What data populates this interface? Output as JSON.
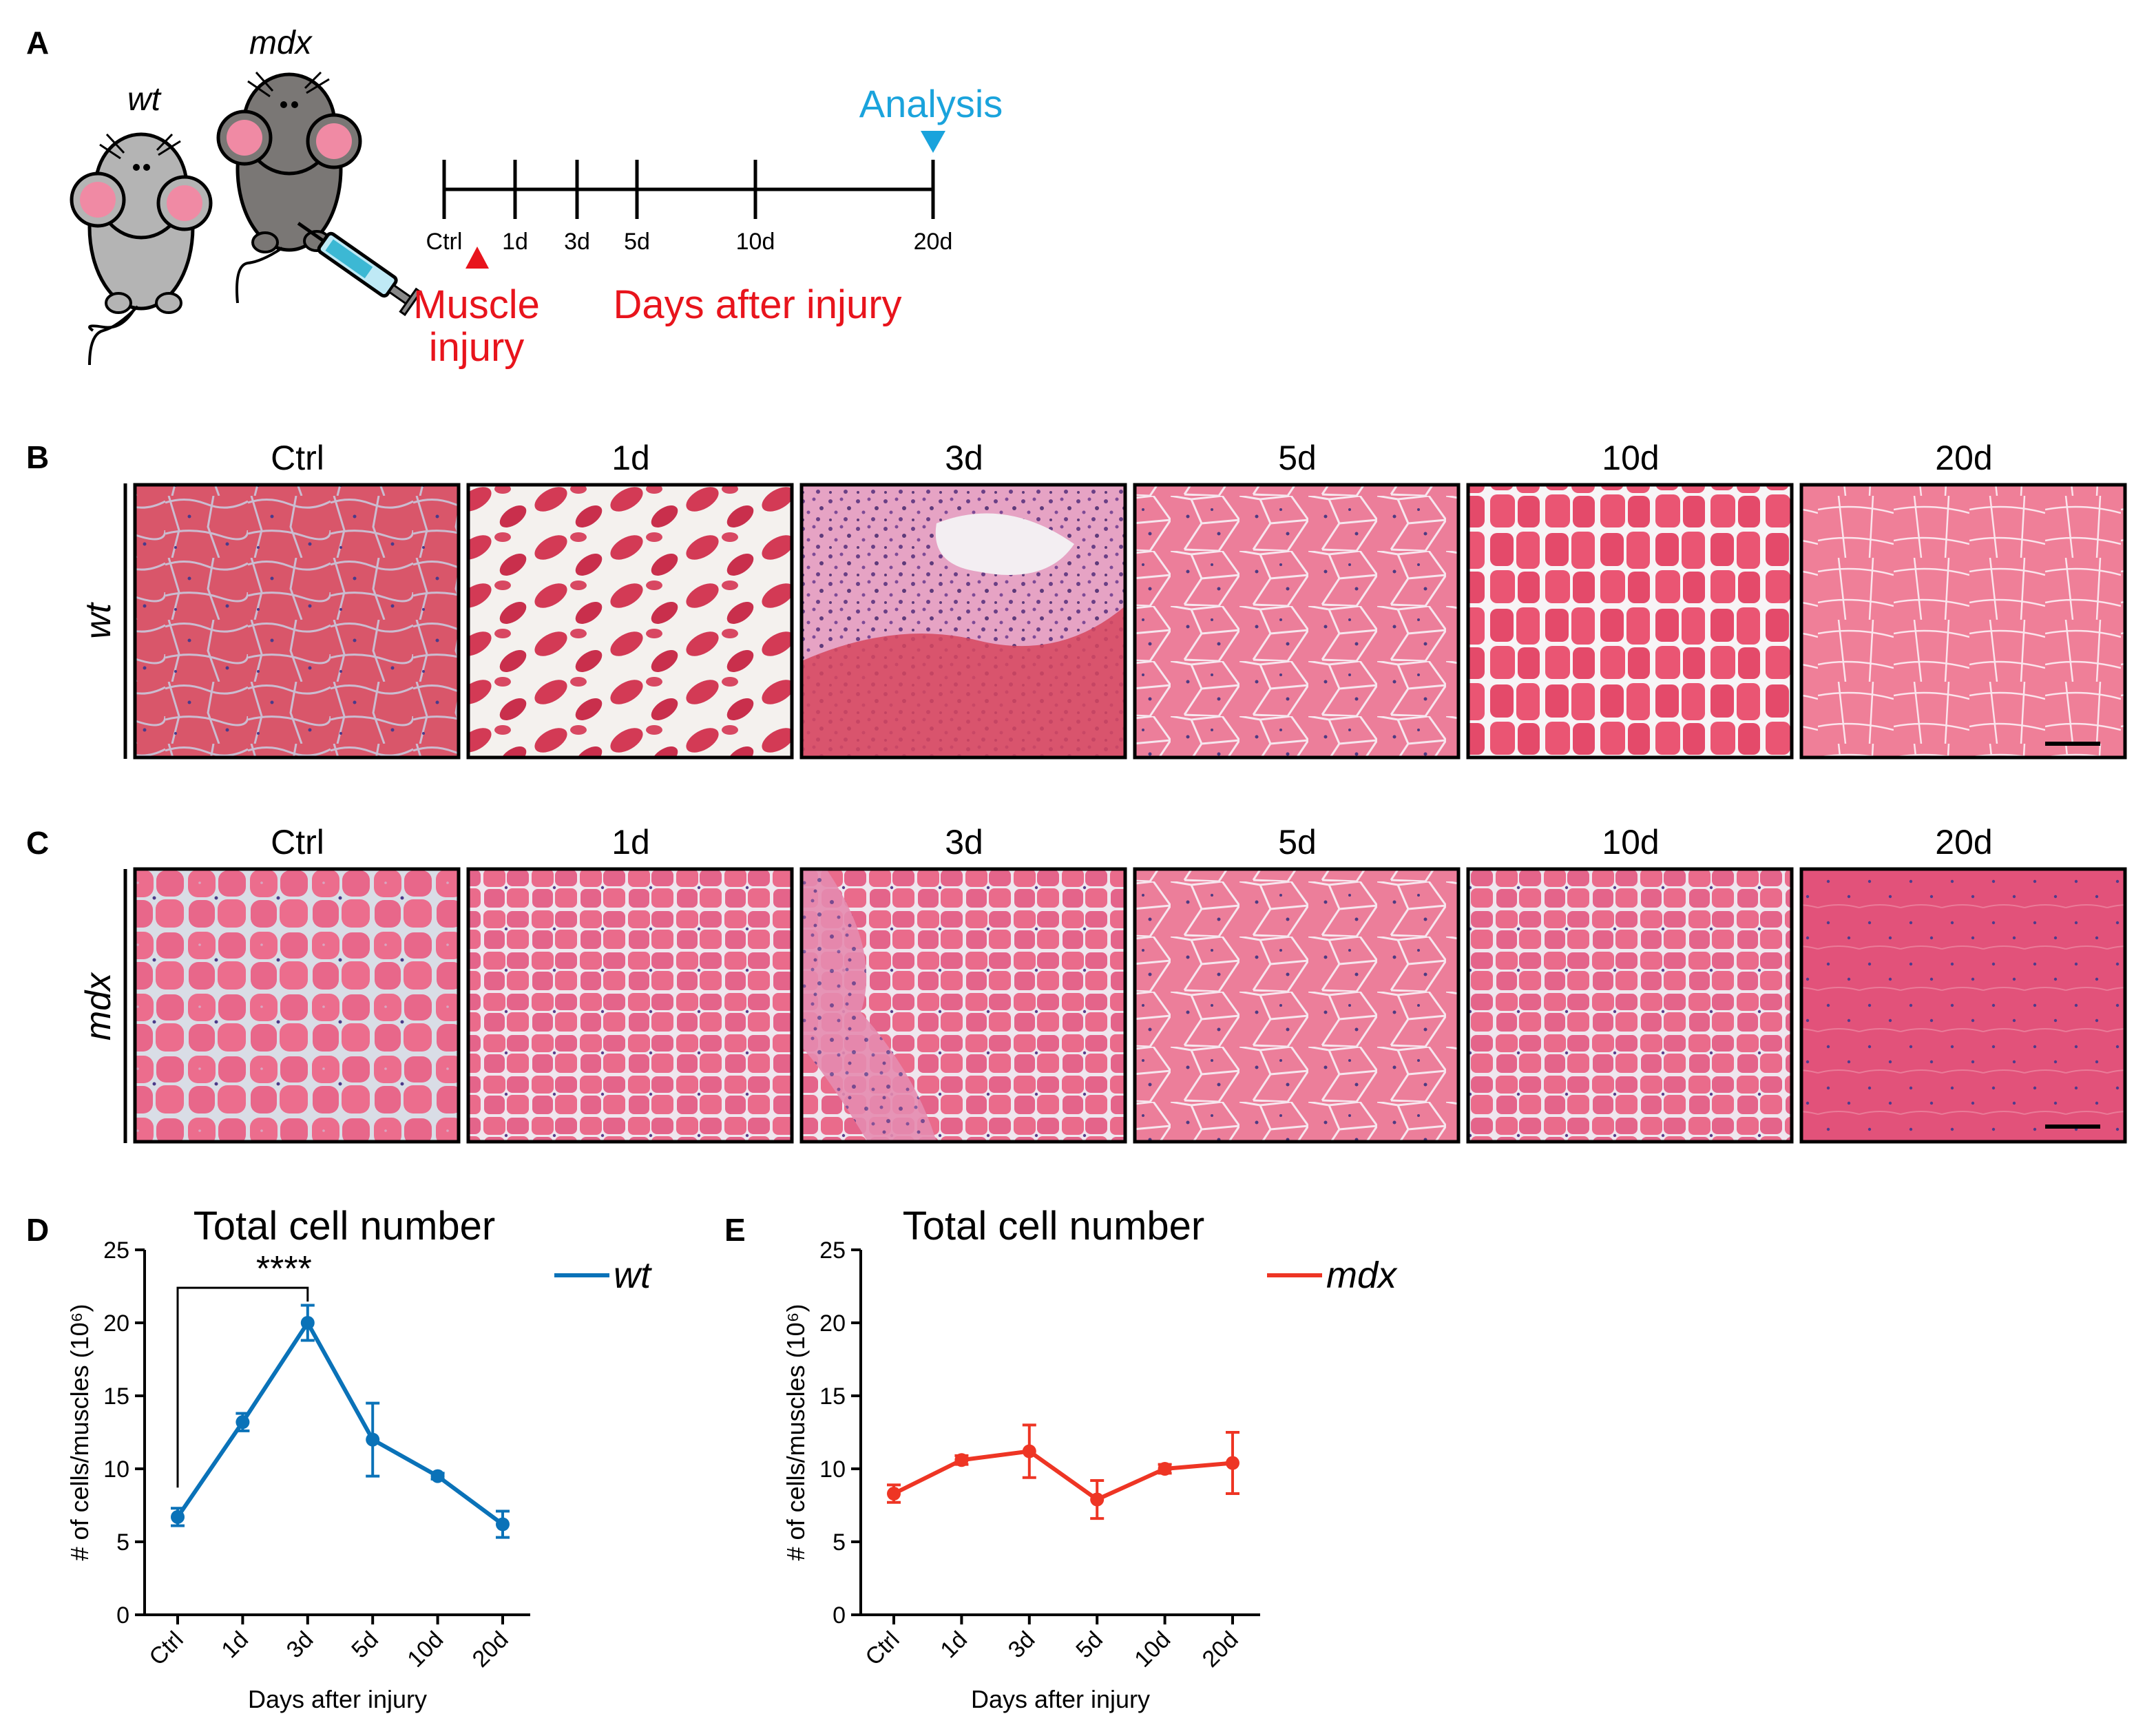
{
  "panel_labels": {
    "a": "A",
    "b": "B",
    "c": "C",
    "d": "D",
    "e": "E"
  },
  "panel_a": {
    "mouse_wt_label": "wt",
    "mouse_mdx_label": "mdx",
    "timeline_ticks": [
      "Ctrl",
      "1d",
      "3d",
      "5d",
      "10d",
      "20d"
    ],
    "analysis_label": "Analysis",
    "injury_label_line1": "Muscle",
    "injury_label_line2": "injury",
    "days_label": "Days after injury",
    "colors": {
      "analysis": "#1aa3dc",
      "injury": "#e8141c",
      "wt_mouse": "#b4b4b4",
      "mdx_mouse": "#7a7775",
      "ear": "#f08aa4"
    }
  },
  "panel_b": {
    "row_label": "wt",
    "column_labels": [
      "Ctrl",
      "1d",
      "3d",
      "5d",
      "10d",
      "20d"
    ]
  },
  "panel_c": {
    "row_label": "mdx",
    "column_labels": [
      "Ctrl",
      "1d",
      "3d",
      "5d",
      "10d",
      "20d"
    ]
  },
  "chart_data": [
    {
      "type": "line",
      "panel": "D",
      "title": "Total cell number",
      "xlabel": "Days after injury",
      "ylabel": "# of cells/muscles (10⁶)",
      "categories": [
        "Ctrl",
        "1d",
        "3d",
        "5d",
        "10d",
        "20d"
      ],
      "yticks": [
        "0",
        "5",
        "10",
        "15",
        "20",
        "25"
      ],
      "ylim": [
        0,
        25
      ],
      "series": [
        {
          "name": "wt",
          "color": "#0a72b8",
          "values": [
            6.7,
            13.2,
            20.0,
            12.0,
            9.5,
            6.2
          ],
          "error": [
            0.6,
            0.6,
            1.2,
            2.5,
            0.2,
            0.9
          ]
        }
      ],
      "annotation": {
        "text": "****",
        "from": "Ctrl",
        "to": "3d"
      },
      "legend": "top-right"
    },
    {
      "type": "line",
      "panel": "E",
      "title": "Total cell number",
      "xlabel": "Days after injury",
      "ylabel": "# of cells/muscles (10⁶)",
      "categories": [
        "Ctrl",
        "1d",
        "3d",
        "5d",
        "10d",
        "20d"
      ],
      "yticks": [
        "0",
        "5",
        "10",
        "15",
        "20",
        "25"
      ],
      "ylim": [
        0,
        25
      ],
      "series": [
        {
          "name": "mdx",
          "color": "#ee3524",
          "values": [
            8.3,
            10.6,
            11.2,
            7.9,
            10.0,
            10.4
          ],
          "error": [
            0.6,
            0.3,
            1.8,
            1.3,
            0.3,
            2.1
          ]
        }
      ],
      "legend": "top-right"
    }
  ]
}
